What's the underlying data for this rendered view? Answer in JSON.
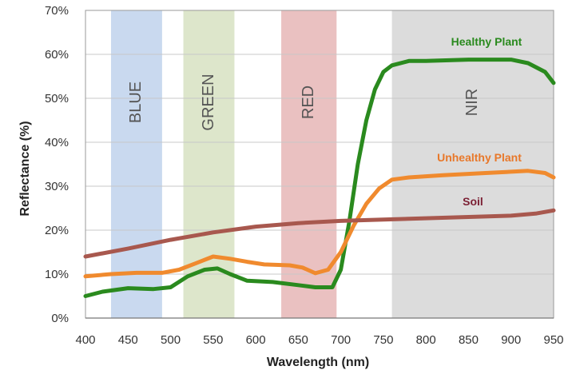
{
  "chart_data": {
    "type": "line",
    "xlabel": "Wavelength (nm)",
    "ylabel": "Reflectance (%)",
    "xlim": [
      400,
      950
    ],
    "ylim": [
      0,
      70
    ],
    "x_ticks": [
      "400",
      "450",
      "500",
      "550",
      "600",
      "650",
      "700",
      "750",
      "800",
      "850",
      "900",
      "950"
    ],
    "y_ticks": [
      "0%",
      "10%",
      "20%",
      "30%",
      "40%",
      "50%",
      "60%",
      "70%"
    ],
    "grid": "horizontal",
    "bands": [
      {
        "label": "BLUE",
        "range": [
          430,
          490
        ],
        "color": "#c9d9ef"
      },
      {
        "label": "GREEN",
        "range": [
          515,
          575
        ],
        "color": "#dde6cb"
      },
      {
        "label": "RED",
        "range": [
          630,
          695
        ],
        "color": "#eac1c1"
      },
      {
        "label": "NIR",
        "range": [
          760,
          950
        ],
        "color": "#dcdcdc"
      }
    ],
    "series": [
      {
        "name": "Healthy Plant",
        "color": "#2a8a1e",
        "label_color": "#2a8a1e",
        "x": [
          400,
          420,
          450,
          480,
          500,
          520,
          540,
          555,
          570,
          590,
          620,
          650,
          670,
          690,
          700,
          710,
          720,
          730,
          740,
          750,
          760,
          780,
          800,
          850,
          900,
          920,
          940,
          950
        ],
        "values": [
          5,
          6,
          6.8,
          6.6,
          7,
          9.5,
          11,
          11.3,
          10,
          8.5,
          8.2,
          7.5,
          7,
          7,
          11,
          22,
          35,
          45,
          52,
          56,
          57.5,
          58.5,
          58.5,
          58.8,
          58.8,
          58,
          56,
          53.5
        ]
      },
      {
        "name": "Unhealthy Plant",
        "color": "#f08a2e",
        "label_color": "#e8782a",
        "x": [
          400,
          430,
          460,
          490,
          510,
          530,
          550,
          570,
          590,
          610,
          640,
          655,
          670,
          685,
          700,
          715,
          730,
          745,
          760,
          780,
          820,
          870,
          920,
          940,
          950
        ],
        "values": [
          9.5,
          10,
          10.3,
          10.3,
          11,
          12.5,
          14,
          13.5,
          12.8,
          12.2,
          12,
          11.5,
          10.2,
          11,
          15,
          21,
          26,
          29.5,
          31.5,
          32,
          32.5,
          33,
          33.5,
          33,
          32
        ]
      },
      {
        "name": "Soil",
        "color": "#a8584e",
        "label_color": "#7b1f33",
        "x": [
          400,
          450,
          500,
          550,
          600,
          650,
          700,
          750,
          800,
          850,
          900,
          930,
          950
        ],
        "values": [
          14,
          15.8,
          17.8,
          19.5,
          20.8,
          21.6,
          22.1,
          22.4,
          22.7,
          23,
          23.3,
          23.8,
          24.5
        ]
      }
    ]
  }
}
